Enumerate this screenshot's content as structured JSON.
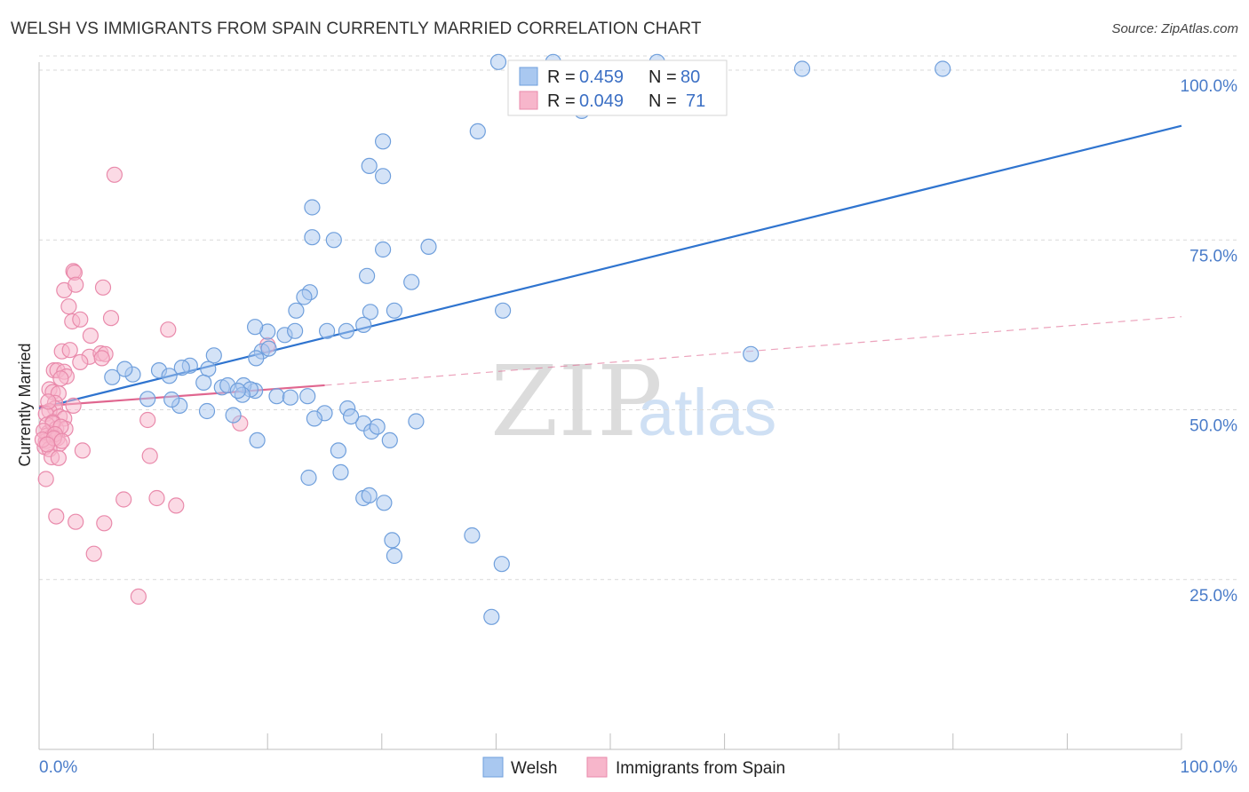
{
  "title": "WELSH VS IMMIGRANTS FROM SPAIN CURRENTLY MARRIED CORRELATION CHART",
  "source": "Source: ZipAtlas.com",
  "watermark": {
    "zip": "ZIP",
    "atlas": "atlas"
  },
  "colors": {
    "welsh_fill": "#a9c8f0",
    "welsh_stroke": "#6f9fdc",
    "welsh_line": "#2f74cf",
    "spain_fill": "#f7b6cb",
    "spain_stroke": "#e98aab",
    "spain_line": "#e0668f",
    "grid": "#d9d9d9",
    "axis_text": "#4a7cc9"
  },
  "stats_box": {
    "rows": [
      {
        "r_label": "R =",
        "r_value": "0.459",
        "n_label": "N =",
        "n_value": "80",
        "series": "welsh"
      },
      {
        "r_label": "R =",
        "r_value": "0.049",
        "n_label": "N =",
        "n_value": "71",
        "series": "spain"
      }
    ]
  },
  "chart_data": {
    "type": "scatter",
    "title": "WELSH VS IMMIGRANTS FROM SPAIN CURRENTLY MARRIED CORRELATION CHART",
    "xlabel": "",
    "ylabel": "Currently Married",
    "xlim": [
      0,
      100
    ],
    "ylim": [
      0,
      104
    ],
    "x_tick_labels": [
      {
        "value": 0,
        "label": "0.0%"
      },
      {
        "value": 100,
        "label": "100.0%"
      }
    ],
    "y_tick_labels": [
      {
        "value": 25,
        "label": "25.0%"
      },
      {
        "value": 50,
        "label": "50.0%"
      },
      {
        "value": 75,
        "label": "75.0%"
      },
      {
        "value": 100,
        "label": "100.0%"
      }
    ],
    "grid": true,
    "legend_position": "bottom",
    "series": [
      {
        "name": "Welsh",
        "key": "welsh",
        "r": 0.459,
        "n": 80,
        "trend": {
          "x": [
            0,
            100
          ],
          "y": [
            50.2,
            91.8
          ],
          "extended": false
        },
        "points": [
          [
            40.2,
            101.2
          ],
          [
            45.0,
            101.2
          ],
          [
            54.1,
            101.2
          ],
          [
            66.8,
            100.2
          ],
          [
            79.1,
            100.2
          ],
          [
            47.5,
            94.0
          ],
          [
            38.4,
            91.0
          ],
          [
            30.1,
            89.5
          ],
          [
            28.9,
            85.9
          ],
          [
            30.1,
            84.4
          ],
          [
            23.9,
            79.8
          ],
          [
            23.9,
            75.4
          ],
          [
            25.8,
            75.0
          ],
          [
            34.1,
            74.0
          ],
          [
            30.1,
            73.6
          ],
          [
            28.7,
            69.7
          ],
          [
            32.6,
            68.8
          ],
          [
            23.7,
            67.3
          ],
          [
            23.2,
            66.6
          ],
          [
            22.5,
            64.6
          ],
          [
            40.6,
            64.6
          ],
          [
            31.1,
            64.6
          ],
          [
            29.0,
            64.4
          ],
          [
            28.4,
            62.5
          ],
          [
            26.9,
            61.6
          ],
          [
            25.2,
            61.6
          ],
          [
            21.5,
            61.0
          ],
          [
            20.0,
            61.5
          ],
          [
            18.9,
            62.2
          ],
          [
            22.4,
            61.6
          ],
          [
            19.5,
            58.6
          ],
          [
            20.1,
            59.0
          ],
          [
            19.0,
            57.6
          ],
          [
            15.3,
            58.0
          ],
          [
            14.8,
            56.0
          ],
          [
            13.2,
            56.5
          ],
          [
            12.5,
            56.2
          ],
          [
            10.5,
            55.8
          ],
          [
            11.4,
            55.0
          ],
          [
            14.4,
            54.0
          ],
          [
            16.0,
            53.3
          ],
          [
            18.9,
            52.8
          ],
          [
            16.5,
            53.6
          ],
          [
            17.9,
            53.6
          ],
          [
            18.5,
            53.0
          ],
          [
            17.8,
            52.2
          ],
          [
            17.4,
            52.8
          ],
          [
            20.8,
            52.0
          ],
          [
            22.0,
            51.8
          ],
          [
            23.5,
            52.0
          ],
          [
            25.0,
            49.5
          ],
          [
            27.0,
            50.2
          ],
          [
            28.4,
            48.0
          ],
          [
            29.1,
            46.8
          ],
          [
            33.0,
            48.3
          ],
          [
            24.1,
            48.7
          ],
          [
            27.3,
            49.0
          ],
          [
            29.6,
            47.5
          ],
          [
            30.7,
            45.5
          ],
          [
            26.2,
            44.0
          ],
          [
            26.4,
            40.8
          ],
          [
            23.6,
            40.0
          ],
          [
            28.4,
            37.0
          ],
          [
            28.9,
            37.4
          ],
          [
            30.2,
            36.3
          ],
          [
            30.9,
            30.8
          ],
          [
            31.1,
            28.5
          ],
          [
            37.9,
            31.5
          ],
          [
            40.5,
            27.3
          ],
          [
            39.6,
            19.5
          ],
          [
            19.1,
            45.5
          ],
          [
            17.0,
            49.2
          ],
          [
            14.7,
            49.8
          ],
          [
            12.3,
            50.6
          ],
          [
            11.6,
            51.5
          ],
          [
            8.2,
            55.2
          ],
          [
            7.5,
            56.0
          ],
          [
            6.4,
            54.8
          ],
          [
            9.5,
            51.6
          ],
          [
            62.3,
            58.2
          ]
        ]
      },
      {
        "name": "Immigrants from Spain",
        "key": "spain",
        "r": 0.049,
        "n": 71,
        "trend": {
          "x": [
            0,
            25
          ],
          "y": [
            50.5,
            53.6
          ],
          "extended": true,
          "ext_x": [
            25,
            100
          ],
          "ext_y": [
            53.6,
            63.7
          ]
        },
        "points": [
          [
            6.6,
            84.6
          ],
          [
            3.0,
            70.4
          ],
          [
            3.1,
            70.2
          ],
          [
            2.2,
            67.6
          ],
          [
            5.6,
            68.0
          ],
          [
            3.2,
            68.4
          ],
          [
            2.6,
            65.2
          ],
          [
            2.9,
            63.0
          ],
          [
            3.6,
            63.3
          ],
          [
            6.3,
            63.5
          ],
          [
            11.3,
            61.8
          ],
          [
            4.5,
            60.9
          ],
          [
            2.0,
            58.6
          ],
          [
            4.4,
            57.8
          ],
          [
            5.4,
            58.3
          ],
          [
            5.8,
            58.2
          ],
          [
            3.6,
            57.0
          ],
          [
            1.3,
            55.8
          ],
          [
            1.6,
            55.8
          ],
          [
            2.2,
            55.6
          ],
          [
            2.4,
            54.9
          ],
          [
            5.5,
            57.6
          ],
          [
            0.9,
            53.0
          ],
          [
            1.2,
            52.6
          ],
          [
            1.7,
            52.4
          ],
          [
            1.4,
            51.0
          ],
          [
            3.0,
            50.6
          ],
          [
            1.4,
            50.2
          ],
          [
            0.9,
            49.8
          ],
          [
            0.6,
            49.4
          ],
          [
            1.8,
            49.0
          ],
          [
            2.2,
            48.7
          ],
          [
            9.5,
            48.5
          ],
          [
            1.2,
            48.2
          ],
          [
            0.7,
            47.8
          ],
          [
            1.5,
            47.2
          ],
          [
            2.3,
            47.2
          ],
          [
            0.8,
            46.6
          ],
          [
            0.7,
            46.2
          ],
          [
            1.1,
            46.0
          ],
          [
            1.6,
            45.8
          ],
          [
            0.6,
            45.4
          ],
          [
            1.8,
            45.0
          ],
          [
            0.5,
            44.5
          ],
          [
            0.9,
            44.2
          ],
          [
            3.8,
            44.0
          ],
          [
            1.1,
            43.0
          ],
          [
            1.7,
            42.9
          ],
          [
            9.7,
            43.2
          ],
          [
            0.6,
            39.8
          ],
          [
            7.4,
            36.8
          ],
          [
            10.3,
            37.0
          ],
          [
            12.0,
            35.9
          ],
          [
            1.5,
            34.3
          ],
          [
            3.2,
            33.5
          ],
          [
            5.7,
            33.3
          ],
          [
            4.8,
            28.8
          ],
          [
            8.7,
            22.5
          ],
          [
            17.6,
            48.0
          ],
          [
            20.0,
            59.5
          ],
          [
            2.7,
            58.8
          ],
          [
            1.9,
            54.6
          ],
          [
            0.8,
            51.2
          ],
          [
            1.2,
            48.0
          ],
          [
            1.9,
            47.5
          ],
          [
            0.4,
            46.9
          ],
          [
            1.4,
            46.4
          ],
          [
            0.3,
            45.6
          ],
          [
            1.3,
            45.8
          ],
          [
            2.0,
            45.4
          ],
          [
            0.7,
            44.9
          ]
        ]
      }
    ]
  }
}
